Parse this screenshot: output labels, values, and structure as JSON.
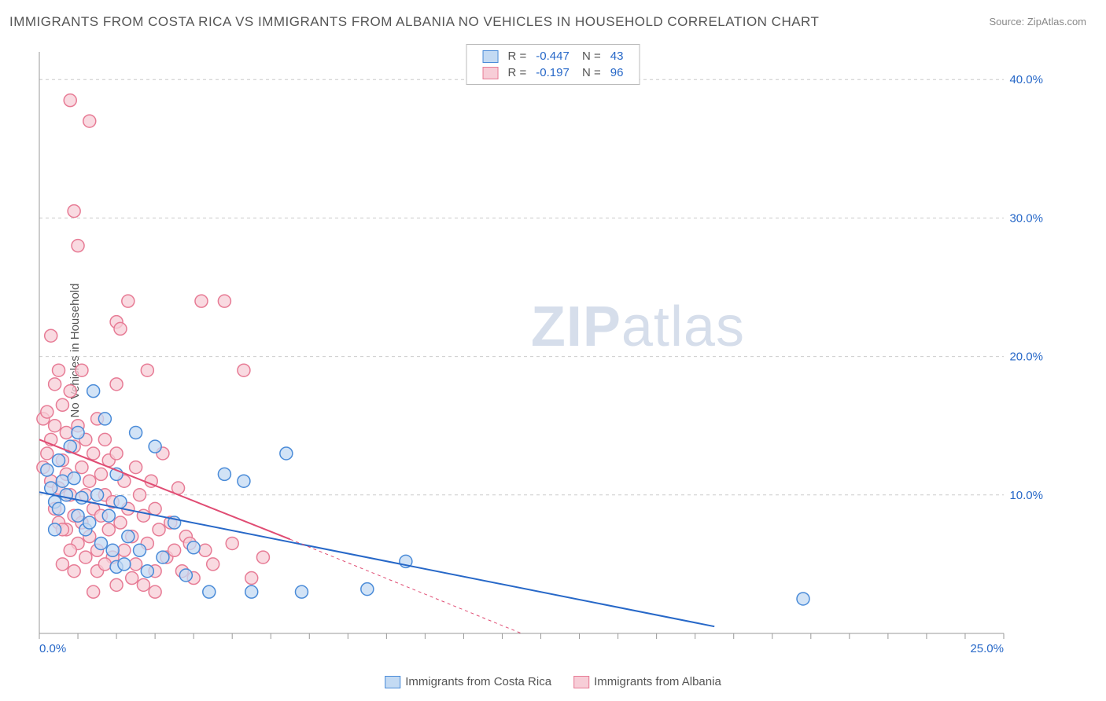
{
  "title": "IMMIGRANTS FROM COSTA RICA VS IMMIGRANTS FROM ALBANIA NO VEHICLES IN HOUSEHOLD CORRELATION CHART",
  "source": "Source: ZipAtlas.com",
  "ylabel": "No Vehicles in Household",
  "watermark_bold": "ZIP",
  "watermark_light": "atlas",
  "chart": {
    "type": "scatter-with-regression",
    "background_color": "#ffffff",
    "grid_color": "#cccccc",
    "axis_color": "#999999",
    "tick_color": "#2768c8",
    "label_color": "#555555",
    "xlim": [
      0,
      25
    ],
    "ylim": [
      0,
      42
    ],
    "xticks": [
      0,
      25
    ],
    "xtick_labels": [
      "0.0%",
      "25.0%"
    ],
    "yticks": [
      10,
      20,
      30,
      40
    ],
    "ytick_labels": [
      "10.0%",
      "20.0%",
      "30.0%",
      "40.0%"
    ],
    "marker_radius": 8,
    "marker_stroke_width": 1.5,
    "line_width": 2,
    "series": [
      {
        "name": "Immigrants from Costa Rica",
        "fill": "#c3daf3",
        "stroke": "#4a8bd8",
        "line_color": "#2768c8",
        "line_dash_ext": "none",
        "R": "-0.447",
        "N": "43",
        "regression": {
          "x1": 0.0,
          "y1": 10.2,
          "x2": 17.5,
          "y2": 0.5
        },
        "points": [
          [
            0.2,
            11.8
          ],
          [
            0.3,
            10.5
          ],
          [
            0.4,
            9.5
          ],
          [
            0.5,
            12.5
          ],
          [
            0.5,
            9.0
          ],
          [
            0.6,
            11.0
          ],
          [
            0.7,
            10.0
          ],
          [
            0.8,
            13.5
          ],
          [
            0.9,
            11.2
          ],
          [
            1.0,
            8.5
          ],
          [
            1.0,
            14.5
          ],
          [
            1.1,
            9.8
          ],
          [
            1.2,
            7.5
          ],
          [
            1.3,
            8.0
          ],
          [
            1.4,
            17.5
          ],
          [
            1.5,
            10.0
          ],
          [
            1.6,
            6.5
          ],
          [
            1.7,
            15.5
          ],
          [
            1.8,
            8.5
          ],
          [
            1.9,
            6.0
          ],
          [
            2.0,
            11.5
          ],
          [
            2.0,
            4.8
          ],
          [
            2.1,
            9.5
          ],
          [
            2.2,
            5.0
          ],
          [
            2.3,
            7.0
          ],
          [
            2.5,
            14.5
          ],
          [
            2.6,
            6.0
          ],
          [
            2.8,
            4.5
          ],
          [
            3.0,
            13.5
          ],
          [
            3.2,
            5.5
          ],
          [
            3.5,
            8.0
          ],
          [
            3.8,
            4.2
          ],
          [
            4.0,
            6.2
          ],
          [
            4.4,
            3.0
          ],
          [
            4.8,
            11.5
          ],
          [
            5.3,
            11.0
          ],
          [
            5.5,
            3.0
          ],
          [
            6.4,
            13.0
          ],
          [
            6.8,
            3.0
          ],
          [
            8.5,
            3.2
          ],
          [
            9.5,
            5.2
          ],
          [
            19.8,
            2.5
          ],
          [
            0.4,
            7.5
          ]
        ]
      },
      {
        "name": "Immigrants from Albania",
        "fill": "#f7cdd7",
        "stroke": "#e77b95",
        "line_color": "#e04c73",
        "line_dash_ext": "4 4",
        "R": "-0.197",
        "N": "96",
        "regression": {
          "x1": 0.0,
          "y1": 14.0,
          "x2": 6.5,
          "y2": 6.8
        },
        "regression_ext": {
          "x1": 6.5,
          "y1": 6.8,
          "x2": 12.5,
          "y2": 0.0
        },
        "points": [
          [
            0.1,
            15.5
          ],
          [
            0.1,
            12.0
          ],
          [
            0.2,
            13.0
          ],
          [
            0.2,
            16.0
          ],
          [
            0.3,
            21.5
          ],
          [
            0.3,
            11.0
          ],
          [
            0.3,
            14.0
          ],
          [
            0.4,
            9.0
          ],
          [
            0.4,
            15.0
          ],
          [
            0.4,
            18.0
          ],
          [
            0.5,
            10.5
          ],
          [
            0.5,
            19.0
          ],
          [
            0.5,
            8.0
          ],
          [
            0.6,
            12.5
          ],
          [
            0.6,
            16.5
          ],
          [
            0.7,
            11.5
          ],
          [
            0.7,
            14.5
          ],
          [
            0.7,
            7.5
          ],
          [
            0.8,
            17.5
          ],
          [
            0.8,
            10.0
          ],
          [
            0.8,
            38.5
          ],
          [
            0.9,
            13.5
          ],
          [
            0.9,
            8.5
          ],
          [
            0.9,
            30.5
          ],
          [
            1.0,
            15.0
          ],
          [
            1.0,
            6.5
          ],
          [
            1.0,
            28.0
          ],
          [
            1.1,
            12.0
          ],
          [
            1.1,
            19.0
          ],
          [
            1.1,
            8.0
          ],
          [
            1.2,
            10.0
          ],
          [
            1.2,
            14.0
          ],
          [
            1.3,
            37.0
          ],
          [
            1.3,
            7.0
          ],
          [
            1.3,
            11.0
          ],
          [
            1.4,
            9.0
          ],
          [
            1.4,
            13.0
          ],
          [
            1.5,
            15.5
          ],
          [
            1.5,
            6.0
          ],
          [
            1.6,
            8.5
          ],
          [
            1.6,
            11.5
          ],
          [
            1.7,
            10.0
          ],
          [
            1.7,
            14.0
          ],
          [
            1.8,
            7.5
          ],
          [
            1.8,
            12.5
          ],
          [
            1.9,
            9.5
          ],
          [
            1.9,
            5.5
          ],
          [
            2.0,
            13.0
          ],
          [
            2.0,
            18.0
          ],
          [
            2.0,
            22.5
          ],
          [
            2.1,
            8.0
          ],
          [
            2.1,
            22.0
          ],
          [
            2.2,
            11.0
          ],
          [
            2.2,
            6.0
          ],
          [
            2.3,
            9.0
          ],
          [
            2.3,
            24.0
          ],
          [
            2.4,
            7.0
          ],
          [
            2.5,
            12.0
          ],
          [
            2.5,
            5.0
          ],
          [
            2.6,
            10.0
          ],
          [
            2.7,
            8.5
          ],
          [
            2.8,
            19.0
          ],
          [
            2.8,
            6.5
          ],
          [
            2.9,
            11.0
          ],
          [
            3.0,
            3.0
          ],
          [
            3.0,
            9.0
          ],
          [
            3.1,
            7.5
          ],
          [
            3.2,
            13.0
          ],
          [
            3.3,
            5.5
          ],
          [
            3.4,
            8.0
          ],
          [
            3.5,
            6.0
          ],
          [
            3.6,
            10.5
          ],
          [
            3.7,
            4.5
          ],
          [
            3.8,
            7.0
          ],
          [
            3.9,
            6.5
          ],
          [
            4.0,
            4.0
          ],
          [
            4.2,
            24.0
          ],
          [
            4.3,
            6.0
          ],
          [
            4.5,
            5.0
          ],
          [
            4.8,
            24.0
          ],
          [
            5.0,
            6.5
          ],
          [
            5.3,
            19.0
          ],
          [
            5.5,
            4.0
          ],
          [
            5.8,
            5.5
          ],
          [
            1.2,
            5.5
          ],
          [
            1.5,
            4.5
          ],
          [
            0.6,
            5.0
          ],
          [
            0.8,
            6.0
          ],
          [
            2.0,
            3.5
          ],
          [
            2.4,
            4.0
          ],
          [
            2.7,
            3.5
          ],
          [
            3.0,
            4.5
          ],
          [
            0.9,
            4.5
          ],
          [
            1.4,
            3.0
          ],
          [
            1.7,
            5.0
          ],
          [
            0.6,
            7.5
          ]
        ]
      }
    ]
  },
  "legend_bottom": [
    {
      "label": "Immigrants from Costa Rica",
      "fill": "#c3daf3",
      "stroke": "#4a8bd8"
    },
    {
      "label": "Immigrants from Albania",
      "fill": "#f7cdd7",
      "stroke": "#e77b95"
    }
  ]
}
